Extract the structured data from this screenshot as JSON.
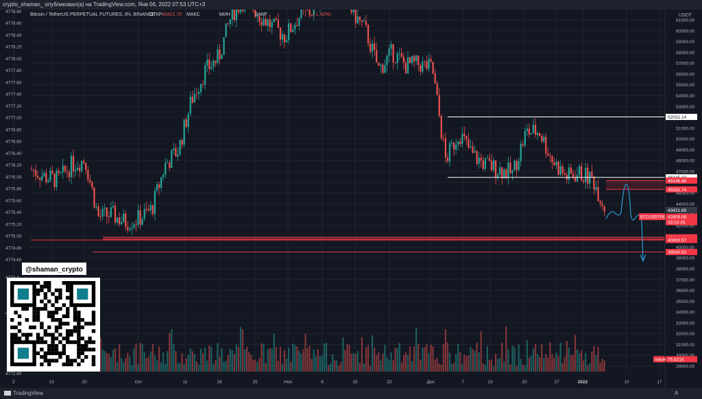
{
  "header": {
    "publish_line": "crypto_shaman_ опубликовал(а) на TradingView.com, Янв 06, 2022 07:53 UTC+3",
    "symbol_line": "Bitcoin / TetherUS PERPETUAL FUTURES, 8Ч, BINANCE",
    "ohlc_labels": {
      "open": "ОТКР",
      "high": "МАКС",
      "low": "МИН",
      "close": "ЗАКР"
    },
    "open_value": "43421.70",
    "change_text": "(-1.42%)"
  },
  "footer": {
    "brand": "TradingView",
    "expand_glyph": "A"
  },
  "colors": {
    "bg": "#131722",
    "grid": "#1f2430",
    "up": "#26a69a",
    "down": "#ef5350",
    "white_line": "#ffffff",
    "red_line": "#f23645",
    "drawing": "#2a9fd6",
    "axis_text": "#b2b5be"
  },
  "watermark": {
    "handle": "@shaman_crypto"
  },
  "chart_data": {
    "type": "candlestick",
    "symbol": "BTCUSDTPERP",
    "timeframe": "8Ч",
    "exchange": "BINANCE",
    "right_axis": {
      "currency": "USDT",
      "ticks": [
        29000,
        30000,
        31000,
        32000,
        33000,
        34000,
        35000,
        36000,
        37000,
        38000,
        39000,
        40000,
        41000,
        42000,
        43000,
        44000,
        45000,
        46000,
        47000,
        48000,
        49000,
        50000,
        51000,
        52000,
        53000,
        54000,
        55000,
        56000,
        57000,
        58000,
        59000,
        60000,
        61000
      ],
      "range": [
        28700,
        61800
      ]
    },
    "left_axis": {
      "ticks": [
        "4774.60",
        "4774.80",
        "4775.00",
        "4775.20",
        "4775.40",
        "4775.60",
        "4775.80",
        "4776.00",
        "4776.20",
        "4776.40",
        "4776.60",
        "4776.80",
        "4777.00",
        "4777.20",
        "4777.40",
        "4777.60",
        "4777.80",
        "4778.00",
        "4778.20",
        "4778.40",
        "4778.60",
        "4778.80"
      ],
      "partial_ticks": [
        "4774.4",
        "4774.2",
        "4772.80"
      ]
    },
    "x_axis": {
      "labels": [
        "Z",
        "13",
        "20",
        "Окт",
        "11",
        "18",
        "25",
        "Ноя",
        "8",
        "15",
        "22",
        "Дек",
        "7",
        "13",
        "20",
        "27",
        "2022",
        "10",
        "17"
      ]
    },
    "price_close_path": [
      [
        "Z",
        47200
      ],
      [
        "6",
        46500
      ],
      [
        "9",
        46200
      ],
      [
        "13",
        47600
      ],
      [
        "16",
        48100
      ],
      [
        "20",
        42800
      ],
      [
        "22",
        43000
      ],
      [
        "24",
        42300
      ],
      [
        "27",
        42600
      ],
      [
        "30",
        43500
      ],
      [
        "Окт",
        47600
      ],
      [
        "4",
        49000
      ],
      [
        "7",
        53700
      ],
      [
        "11",
        56300
      ],
      [
        "14",
        57500
      ],
      [
        "18",
        61600
      ],
      [
        "21",
        63000
      ],
      [
        "25",
        61500
      ],
      [
        "28",
        60400
      ],
      [
        "31",
        59500
      ],
      [
        "Ноя",
        61300
      ],
      [
        "4",
        61800
      ],
      [
        "8",
        64200
      ],
      [
        "10",
        65000
      ],
      [
        "15",
        61800
      ],
      [
        "17",
        60000
      ],
      [
        "22",
        56400
      ],
      [
        "25",
        58000
      ],
      [
        "28",
        56800
      ],
      [
        "Дек",
        56900
      ],
      [
        "3",
        56500
      ],
      [
        "4",
        48000
      ],
      [
        "7",
        50600
      ],
      [
        "10",
        48500
      ],
      [
        "13",
        47600
      ],
      [
        "17",
        47200
      ],
      [
        "20",
        46800
      ],
      [
        "24",
        50600
      ],
      [
        "27",
        50700
      ],
      [
        "28",
        48000
      ],
      [
        "31",
        46500
      ],
      [
        "2022",
        46800
      ],
      [
        "3",
        46300
      ],
      [
        "5",
        43421
      ]
    ],
    "levels": [
      {
        "price": 52031.14,
        "label": "52031.14",
        "style": "white"
      },
      {
        "price": 46445.33,
        "label": "46445.33",
        "style": "white"
      },
      {
        "price": 46146.46,
        "label": "46146.46",
        "style": "red"
      },
      {
        "price": 45331.74,
        "label": "45331.74",
        "style": "red"
      },
      {
        "price": 40904.41,
        "label": "40904.41",
        "style": "red"
      },
      {
        "price": 40724.61,
        "label": "40724.61",
        "style": "red"
      },
      {
        "price": 40650.57,
        "label": "40650.57",
        "style": "red"
      },
      {
        "price": 39540.02,
        "label": "39540.02",
        "style": "red"
      }
    ],
    "current_price": {
      "price": 43421.69,
      "label": "43421.69"
    },
    "last_marker": {
      "label": "BTCUSDTPERP",
      "price_label": "42806.06",
      "countdown": "03:10:25"
    },
    "volume_label": {
      "title": "Volume",
      "value": "75.621K"
    },
    "legend": "none",
    "grid": true
  }
}
